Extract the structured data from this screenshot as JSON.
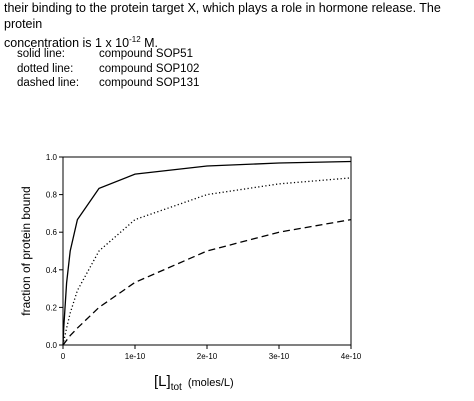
{
  "intro": {
    "line1": "their binding to the protein target X, which plays a role in hormone release.  The protein",
    "line2_prefix": "concentration is 1 x 10",
    "line2_exp": "-12",
    "line2_suffix": " M."
  },
  "legend": [
    {
      "style": "solid line:",
      "name": "compound SOP51"
    },
    {
      "style": "dotted line:",
      "name": "compound SOP102"
    },
    {
      "style": "dashed line:",
      "name": "compound SOP131"
    }
  ],
  "chart_data": {
    "type": "line",
    "title": "",
    "xlabel_main": "[L]",
    "xlabel_sub": "tot",
    "xlabel_unit": "(moles/L)",
    "ylabel": "fraction of protein bound",
    "xlim": [
      0,
      4e-10
    ],
    "ylim": [
      0,
      1.0
    ],
    "x_ticks": [
      0,
      1e-10,
      2e-10,
      3e-10,
      4e-10
    ],
    "x_tick_labels": [
      "0",
      "1e-10",
      "2e-10",
      "3e-10",
      "4e-10"
    ],
    "y_ticks": [
      0,
      0.2,
      0.4,
      0.6,
      0.8,
      1.0
    ],
    "y_tick_labels": [
      "0.0",
      "0.2",
      "0.4",
      "0.6",
      "0.8",
      "1.0"
    ],
    "grid": false,
    "series": [
      {
        "name": "compound SOP51",
        "style": "solid",
        "x": [
          0,
          1e-12,
          5e-12,
          1e-11,
          2e-11,
          5e-11,
          1e-10,
          2e-10,
          3e-10,
          4e-10
        ],
        "y": [
          0,
          0.09,
          0.33,
          0.5,
          0.667,
          0.833,
          0.909,
          0.952,
          0.968,
          0.976
        ]
      },
      {
        "name": "compound SOP102",
        "style": "dotted",
        "x": [
          0,
          1e-12,
          5e-12,
          1e-11,
          2e-11,
          5e-11,
          1e-10,
          2e-10,
          3e-10,
          4e-10
        ],
        "y": [
          0,
          0.02,
          0.09,
          0.17,
          0.29,
          0.5,
          0.667,
          0.8,
          0.857,
          0.889
        ]
      },
      {
        "name": "compound SOP131",
        "style": "dashed",
        "x": [
          0,
          1e-12,
          5e-12,
          1e-11,
          2e-11,
          5e-11,
          1e-10,
          2e-10,
          3e-10,
          4e-10
        ],
        "y": [
          0,
          0.005,
          0.025,
          0.05,
          0.09,
          0.2,
          0.333,
          0.5,
          0.6,
          0.667
        ]
      }
    ]
  }
}
